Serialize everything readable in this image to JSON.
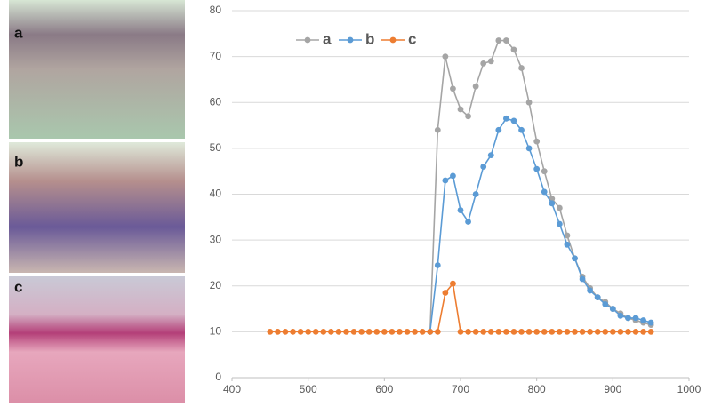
{
  "image_panels": [
    "a",
    "b",
    "c"
  ],
  "chart_data": {
    "type": "line",
    "x": [
      450,
      460,
      470,
      480,
      490,
      500,
      510,
      520,
      530,
      540,
      550,
      560,
      570,
      580,
      590,
      600,
      610,
      620,
      630,
      640,
      650,
      660,
      670,
      680,
      690,
      700,
      710,
      720,
      730,
      740,
      750,
      760,
      770,
      780,
      790,
      800,
      810,
      820,
      830,
      840,
      850,
      860,
      870,
      880,
      890,
      900,
      910,
      920,
      930,
      940,
      950
    ],
    "series": [
      {
        "name": "a",
        "color": "#a5a5a5",
        "values": [
          null,
          null,
          null,
          null,
          null,
          null,
          null,
          null,
          null,
          null,
          null,
          null,
          null,
          null,
          null,
          null,
          null,
          null,
          null,
          null,
          null,
          10,
          54,
          70,
          63,
          58.5,
          57,
          63.5,
          68.5,
          69,
          73.5,
          73.5,
          71.5,
          67.5,
          60,
          51.5,
          45,
          39,
          37,
          31,
          26,
          22,
          19.5,
          17.5,
          16.5,
          15,
          14,
          13,
          12.5,
          12,
          11.5
        ]
      },
      {
        "name": "b",
        "color": "#5b9bd5",
        "values": [
          null,
          null,
          null,
          null,
          null,
          null,
          null,
          null,
          null,
          null,
          null,
          null,
          null,
          null,
          null,
          null,
          null,
          null,
          null,
          null,
          null,
          10,
          24.5,
          43,
          44,
          36.5,
          34,
          40,
          46,
          48.5,
          54,
          56.5,
          56,
          54,
          50,
          45.5,
          40.5,
          38,
          33.5,
          29,
          26,
          21.5,
          19,
          17.5,
          16,
          15,
          13.5,
          13,
          13,
          12.5,
          12
        ]
      },
      {
        "name": "c",
        "color": "#ed7d31",
        "values": [
          10,
          10,
          10,
          10,
          10,
          10,
          10,
          10,
          10,
          10,
          10,
          10,
          10,
          10,
          10,
          10,
          10,
          10,
          10,
          10,
          10,
          10,
          10,
          18.5,
          20.5,
          10,
          10,
          10,
          10,
          10,
          10,
          10,
          10,
          10,
          10,
          10,
          10,
          10,
          10,
          10,
          10,
          10,
          10,
          10,
          10,
          10,
          10,
          10,
          10,
          10,
          10
        ]
      }
    ],
    "xlim": [
      400,
      1000
    ],
    "xticks": [
      400,
      500,
      600,
      700,
      800,
      900,
      1000
    ],
    "ylim": [
      0,
      80
    ],
    "yticks": [
      0,
      10,
      20,
      30,
      40,
      50,
      60,
      70,
      80
    ],
    "grid": true,
    "legend": "top-left"
  }
}
